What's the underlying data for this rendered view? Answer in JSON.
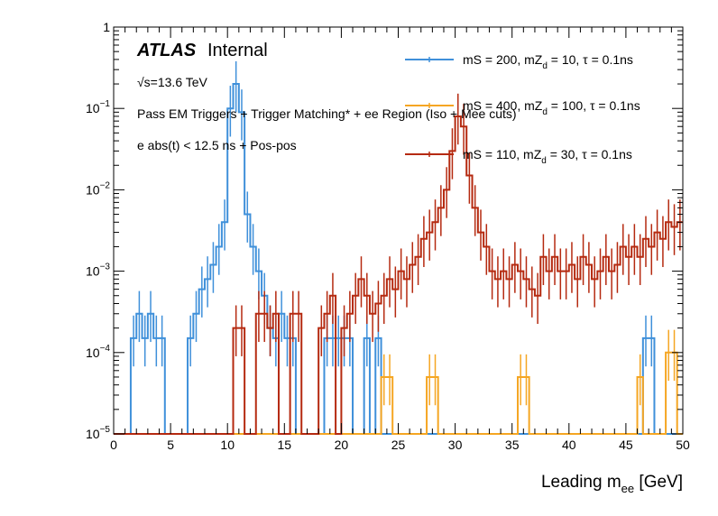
{
  "chart_data": {
    "type": "line",
    "title": "",
    "atlas_label": "ATLAS",
    "atlas_status": "Internal",
    "energy_label": "√s=13.6 TeV",
    "selection_line1": "Pass EM Triggers + Trigger Matching* + ee Region (Iso + Mee cuts)",
    "selection_line2": "e abs(t) < 12.5 ns + Pos-pos",
    "xlabel": "Leading m",
    "xlabel_sub": "ee",
    "xlabel_unit": " [GeV]",
    "ylabel": "",
    "xlim": [
      0,
      50
    ],
    "ylim": [
      1e-05,
      1
    ],
    "yscale": "log",
    "x_ticks": [
      "0",
      "5",
      "10",
      "15",
      "20",
      "25",
      "30",
      "35",
      "40",
      "45",
      "50"
    ],
    "y_ticks": [
      {
        "base": "10",
        "exp": "−5"
      },
      {
        "base": "10",
        "exp": "−4"
      },
      {
        "base": "10",
        "exp": "−3"
      },
      {
        "base": "10",
        "exp": "−2"
      },
      {
        "base": "10",
        "exp": "−1"
      },
      {
        "base": "1",
        "exp": ""
      }
    ],
    "bin_width": 0.5,
    "series": [
      {
        "name": "mS = 200, mZd = 10, τ = 0.1ns",
        "legend_pre": "mS = 200, mZ",
        "legend_sub": "d",
        "legend_post": " = 10, τ = 0.1ns",
        "color": "#3f90da",
        "bins": [
          [
            1.5,
            0.00015
          ],
          [
            2.0,
            0.0003
          ],
          [
            2.5,
            0.00015
          ],
          [
            3.0,
            0.0003
          ],
          [
            3.5,
            0.00015
          ],
          [
            4.0,
            0.00015
          ],
          [
            4.5,
            0.0
          ],
          [
            5.0,
            0.0
          ],
          [
            5.5,
            0.0
          ],
          [
            6.0,
            0.0
          ],
          [
            6.5,
            0.00015
          ],
          [
            7.0,
            0.0003
          ],
          [
            7.5,
            0.0006
          ],
          [
            8.0,
            0.0008
          ],
          [
            8.5,
            0.0012
          ],
          [
            9.0,
            0.002
          ],
          [
            9.5,
            0.004
          ],
          [
            10.0,
            0.1
          ],
          [
            10.5,
            0.2
          ],
          [
            11.0,
            0.09
          ],
          [
            11.5,
            0.005
          ],
          [
            12.0,
            0.002
          ],
          [
            12.5,
            0.001
          ],
          [
            13.0,
            0.0005
          ],
          [
            13.5,
            0.0002
          ],
          [
            14.0,
            0.00015
          ],
          [
            14.5,
            0.0003
          ],
          [
            15.0,
            0.00015
          ],
          [
            15.5,
            0.00015
          ],
          [
            16.0,
            0.0
          ],
          [
            16.5,
            0.0
          ],
          [
            17.0,
            0.0
          ],
          [
            17.5,
            0.0
          ],
          [
            18.0,
            0.0
          ],
          [
            18.5,
            0.00015
          ],
          [
            19.0,
            0.00015
          ],
          [
            19.5,
            0.00015
          ],
          [
            20.0,
            0.00015
          ],
          [
            20.5,
            0.00015
          ],
          [
            21.0,
            0.0
          ],
          [
            21.5,
            0.0
          ],
          [
            22.0,
            0.00015
          ],
          [
            22.5,
            0.0
          ],
          [
            23.0,
            0.00015
          ],
          [
            46.5,
            0.00015
          ],
          [
            47.0,
            0.00015
          ]
        ]
      },
      {
        "name": "mS = 400, mZd = 100, τ = 0.1ns",
        "legend_pre": "mS = 400, mZ",
        "legend_sub": "d",
        "legend_post": " = 100, τ = 0.1ns",
        "color": "#f5a623",
        "bins": [
          [
            23.5,
            5e-05
          ],
          [
            24.0,
            5e-05
          ],
          [
            27.5,
            5e-05
          ],
          [
            28.0,
            5e-05
          ],
          [
            35.5,
            5e-05
          ],
          [
            36.0,
            5e-05
          ],
          [
            46.0,
            5e-05
          ],
          [
            48.5,
            0.0001
          ],
          [
            49.0,
            0.0001
          ]
        ]
      },
      {
        "name": "mS = 110, mZd = 30, τ = 0.1ns",
        "legend_pre": "mS = 110, mZ",
        "legend_sub": "d",
        "legend_post": " = 30, τ = 0.1ns",
        "color": "#b52a10",
        "bins": [
          [
            10.5,
            0.0002
          ],
          [
            11.0,
            0.0002
          ],
          [
            12.5,
            0.0003
          ],
          [
            13.0,
            0.0003
          ],
          [
            13.5,
            0.0002
          ],
          [
            14.0,
            0.0003
          ],
          [
            15.5,
            0.0003
          ],
          [
            16.0,
            0.0003
          ],
          [
            18.0,
            0.0002
          ],
          [
            18.5,
            0.0003
          ],
          [
            19.0,
            0.0005
          ],
          [
            20.0,
            0.0002
          ],
          [
            20.5,
            0.0003
          ],
          [
            21.0,
            0.0005
          ],
          [
            21.5,
            0.0008
          ],
          [
            22.0,
            0.0005
          ],
          [
            22.5,
            0.0003
          ],
          [
            23.0,
            0.0004
          ],
          [
            23.5,
            0.0005
          ],
          [
            24.0,
            0.0008
          ],
          [
            24.5,
            0.0006
          ],
          [
            25.0,
            0.001
          ],
          [
            25.5,
            0.0008
          ],
          [
            26.0,
            0.0012
          ],
          [
            26.5,
            0.0015
          ],
          [
            27.0,
            0.0025
          ],
          [
            27.5,
            0.003
          ],
          [
            28.0,
            0.004
          ],
          [
            28.5,
            0.006
          ],
          [
            29.0,
            0.01
          ],
          [
            29.5,
            0.03
          ],
          [
            30.0,
            0.08
          ],
          [
            30.5,
            0.06
          ],
          [
            31.0,
            0.015
          ],
          [
            31.5,
            0.006
          ],
          [
            32.0,
            0.003
          ],
          [
            32.5,
            0.002
          ],
          [
            33.0,
            0.001
          ],
          [
            33.5,
            0.0008
          ],
          [
            34.0,
            0.001
          ],
          [
            34.5,
            0.0008
          ],
          [
            35.0,
            0.0012
          ],
          [
            35.5,
            0.001
          ],
          [
            36.0,
            0.0008
          ],
          [
            36.5,
            0.0006
          ],
          [
            37.0,
            0.0005
          ],
          [
            37.5,
            0.0015
          ],
          [
            38.0,
            0.001
          ],
          [
            38.5,
            0.0015
          ],
          [
            39.0,
            0.001
          ],
          [
            39.5,
            0.001
          ],
          [
            40.0,
            0.0012
          ],
          [
            40.5,
            0.0008
          ],
          [
            41.0,
            0.0015
          ],
          [
            41.5,
            0.0012
          ],
          [
            42.0,
            0.0008
          ],
          [
            42.5,
            0.001
          ],
          [
            43.0,
            0.0015
          ],
          [
            43.5,
            0.001
          ],
          [
            44.0,
            0.0012
          ],
          [
            44.5,
            0.002
          ],
          [
            45.0,
            0.0015
          ],
          [
            45.5,
            0.002
          ],
          [
            46.0,
            0.0015
          ],
          [
            46.5,
            0.0025
          ],
          [
            47.0,
            0.002
          ],
          [
            47.5,
            0.003
          ],
          [
            48.0,
            0.0025
          ],
          [
            48.5,
            0.004
          ],
          [
            49.0,
            0.0035
          ],
          [
            49.5,
            0.004
          ]
        ]
      }
    ]
  }
}
